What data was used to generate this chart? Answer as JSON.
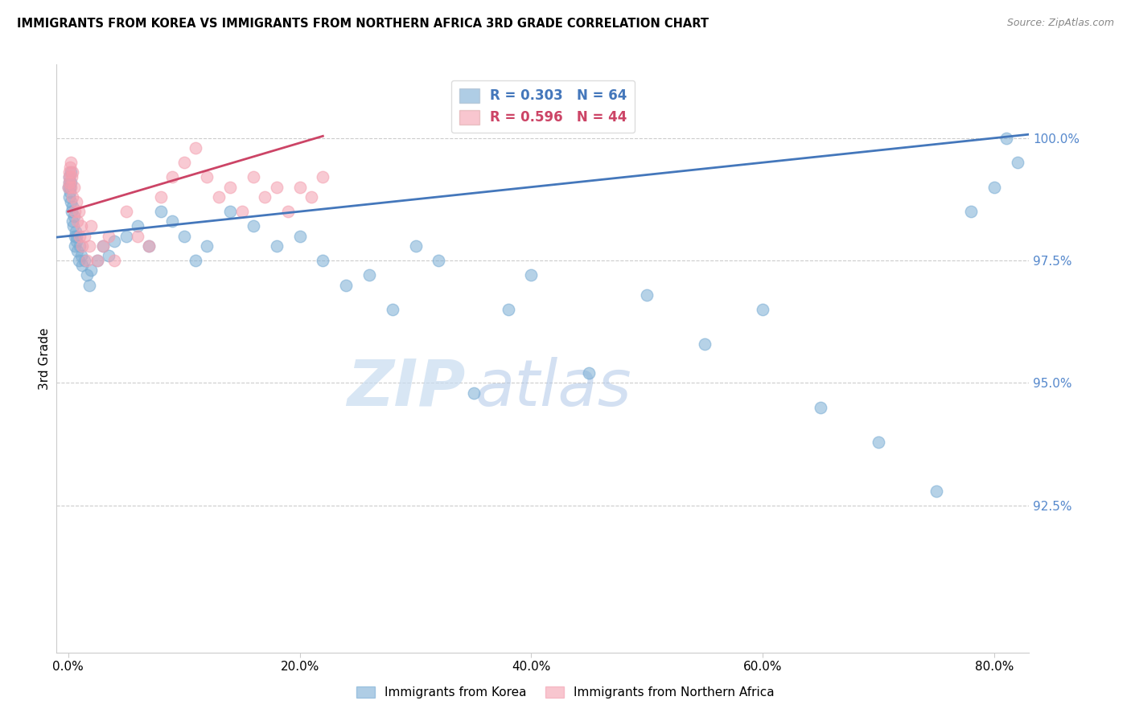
{
  "title": "IMMIGRANTS FROM KOREA VS IMMIGRANTS FROM NORTHERN AFRICA 3RD GRADE CORRELATION CHART",
  "source": "Source: ZipAtlas.com",
  "ylabel": "3rd Grade",
  "ylim": [
    89.5,
    101.5
  ],
  "xlim": [
    -1.0,
    83.0
  ],
  "blue_color": "#7aadd4",
  "pink_color": "#f4a0b0",
  "blue_line_color": "#4477bb",
  "pink_line_color": "#cc4466",
  "legend_R_blue": "R = 0.303",
  "legend_N_blue": "N = 64",
  "legend_R_pink": "R = 0.596",
  "legend_N_pink": "N = 44",
  "legend_label_blue": "Immigrants from Korea",
  "legend_label_pink": "Immigrants from Northern Africa",
  "watermark": "ZIPatlas",
  "blue_x": [
    0.05,
    0.08,
    0.1,
    0.12,
    0.15,
    0.18,
    0.2,
    0.22,
    0.25,
    0.3,
    0.35,
    0.4,
    0.45,
    0.5,
    0.55,
    0.6,
    0.65,
    0.7,
    0.75,
    0.8,
    0.9,
    1.0,
    1.1,
    1.2,
    1.4,
    1.6,
    1.8,
    2.0,
    2.5,
    3.0,
    3.5,
    4.0,
    5.0,
    6.0,
    7.0,
    8.0,
    9.0,
    10.0,
    11.0,
    12.0,
    14.0,
    16.0,
    18.0,
    20.0,
    22.0,
    24.0,
    26.0,
    28.0,
    30.0,
    32.0,
    35.0,
    38.0,
    40.0,
    45.0,
    50.0,
    55.0,
    60.0,
    65.0,
    70.0,
    75.0,
    78.0,
    80.0,
    81.0,
    82.0
  ],
  "blue_y": [
    99.0,
    98.8,
    99.2,
    99.1,
    98.9,
    99.0,
    98.7,
    99.3,
    99.1,
    98.5,
    98.3,
    98.6,
    98.2,
    98.4,
    98.0,
    97.8,
    98.1,
    97.9,
    98.0,
    97.7,
    97.5,
    97.8,
    97.6,
    97.4,
    97.5,
    97.2,
    97.0,
    97.3,
    97.5,
    97.8,
    97.6,
    97.9,
    98.0,
    98.2,
    97.8,
    98.5,
    98.3,
    98.0,
    97.5,
    97.8,
    98.5,
    98.2,
    97.8,
    98.0,
    97.5,
    97.0,
    97.2,
    96.5,
    97.8,
    97.5,
    94.8,
    96.5,
    97.2,
    95.2,
    96.8,
    95.8,
    96.5,
    94.5,
    93.8,
    92.8,
    98.5,
    99.0,
    100.0,
    99.5
  ],
  "pink_x": [
    0.05,
    0.08,
    0.1,
    0.12,
    0.15,
    0.2,
    0.25,
    0.3,
    0.35,
    0.4,
    0.5,
    0.6,
    0.7,
    0.8,
    0.9,
    1.0,
    1.1,
    1.2,
    1.4,
    1.6,
    1.8,
    2.0,
    2.5,
    3.0,
    3.5,
    4.0,
    5.0,
    6.0,
    7.0,
    8.0,
    9.0,
    10.0,
    11.0,
    12.0,
    13.0,
    14.0,
    15.0,
    16.0,
    17.0,
    18.0,
    19.0,
    20.0,
    21.0,
    22.0
  ],
  "pink_y": [
    99.0,
    99.3,
    99.1,
    99.2,
    99.4,
    99.0,
    99.5,
    99.2,
    99.3,
    98.8,
    99.0,
    98.5,
    98.7,
    98.3,
    98.5,
    98.0,
    98.2,
    97.8,
    98.0,
    97.5,
    97.8,
    98.2,
    97.5,
    97.8,
    98.0,
    97.5,
    98.5,
    98.0,
    97.8,
    98.8,
    99.2,
    99.5,
    99.8,
    99.2,
    98.8,
    99.0,
    98.5,
    99.2,
    98.8,
    99.0,
    98.5,
    99.0,
    98.8,
    99.2
  ]
}
